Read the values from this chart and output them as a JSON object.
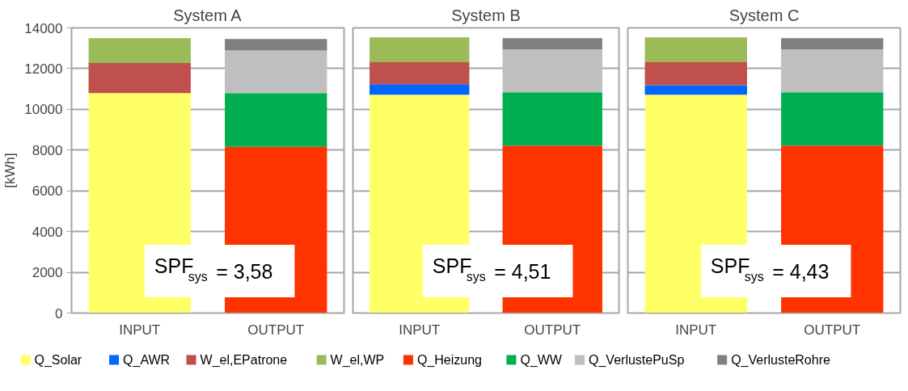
{
  "chart_data": [
    {
      "type": "bar",
      "title": "System A",
      "ylabel": "[kWh]",
      "categories": [
        "INPUT",
        "OUTPUT"
      ],
      "stacked": true,
      "ylim": [
        0,
        14000
      ],
      "yticks": [
        0,
        2000,
        4000,
        6000,
        8000,
        10000,
        12000,
        14000
      ],
      "grid": "y",
      "legend": "bottom",
      "annotations": [
        "SPF$_{sys}$ = 3,58"
      ],
      "series": [
        {
          "name": "Q_Solar",
          "color": "#ffff66",
          "values": [
            10800,
            null
          ]
        },
        {
          "name": "Q_AWR",
          "color": "#0066ff",
          "values": [
            null,
            null
          ]
        },
        {
          "name": "W_el,EPatrone",
          "color": "#c0504d",
          "values": [
            1470,
            null
          ]
        },
        {
          "name": "W_el,WP",
          "color": "#9bbb59",
          "values": [
            1220,
            null
          ]
        },
        {
          "name": "Q_Heizung",
          "color": "#ff3300",
          "values": [
            null,
            8160
          ]
        },
        {
          "name": "Q_WW",
          "color": "#00b050",
          "values": [
            null,
            2640
          ]
        },
        {
          "name": "Q_VerlustePuSp",
          "color": "#bfbfbf",
          "values": [
            null,
            2090
          ]
        },
        {
          "name": "Q_VerlusteRohre",
          "color": "#808080",
          "values": [
            null,
            560
          ]
        }
      ]
    },
    {
      "type": "bar",
      "title": "System B",
      "categories": [
        "INPUT",
        "OUTPUT"
      ],
      "stacked": true,
      "ylim": [
        0,
        14000
      ],
      "yticks": [
        0,
        2000,
        4000,
        6000,
        8000,
        10000,
        12000,
        14000
      ],
      "grid": "y",
      "tick_labels": "x",
      "annotations": [
        "SPF$_{sys}$ = 4,51"
      ],
      "series": [
        {
          "color": "#ffff66",
          "values": [
            10720,
            null
          ]
        },
        {
          "color": "#0066ff",
          "values": [
            510,
            null
          ]
        },
        {
          "color": "#c0504d",
          "values": [
            1080,
            null
          ]
        },
        {
          "color": "#9bbb59",
          "values": [
            1220,
            null
          ]
        },
        {
          "color": "#ff3300",
          "values": [
            null,
            8220
          ]
        },
        {
          "color": "#00b050",
          "values": [
            null,
            2620
          ]
        },
        {
          "color": "#bfbfbf",
          "values": [
            null,
            2100
          ]
        },
        {
          "color": "#808080",
          "values": [
            null,
            550
          ]
        }
      ]
    },
    {
      "type": "bar",
      "title": "System C",
      "categories": [
        "INPUT",
        "OUTPUT"
      ],
      "stacked": true,
      "ylim": [
        0,
        14000
      ],
      "yticks": [
        0,
        2000,
        4000,
        6000,
        8000,
        10000,
        12000,
        14000
      ],
      "grid": "y",
      "tick_labels": "x",
      "annotations": [
        "SPF$_{sys}$ = 4,43"
      ],
      "series": [
        {
          "color": "#ffff66",
          "values": [
            10720,
            null
          ]
        },
        {
          "color": "#0066ff",
          "values": [
            460,
            null
          ]
        },
        {
          "color": "#c0504d",
          "values": [
            1130,
            null
          ]
        },
        {
          "color": "#9bbb59",
          "values": [
            1220,
            null
          ]
        },
        {
          "color": "#ff3300",
          "values": [
            null,
            8220
          ]
        },
        {
          "color": "#00b050",
          "values": [
            null,
            2620
          ]
        },
        {
          "color": "#bfbfbf",
          "values": [
            null,
            2100
          ]
        },
        {
          "color": "#808080",
          "values": [
            null,
            550
          ]
        }
      ]
    }
  ]
}
